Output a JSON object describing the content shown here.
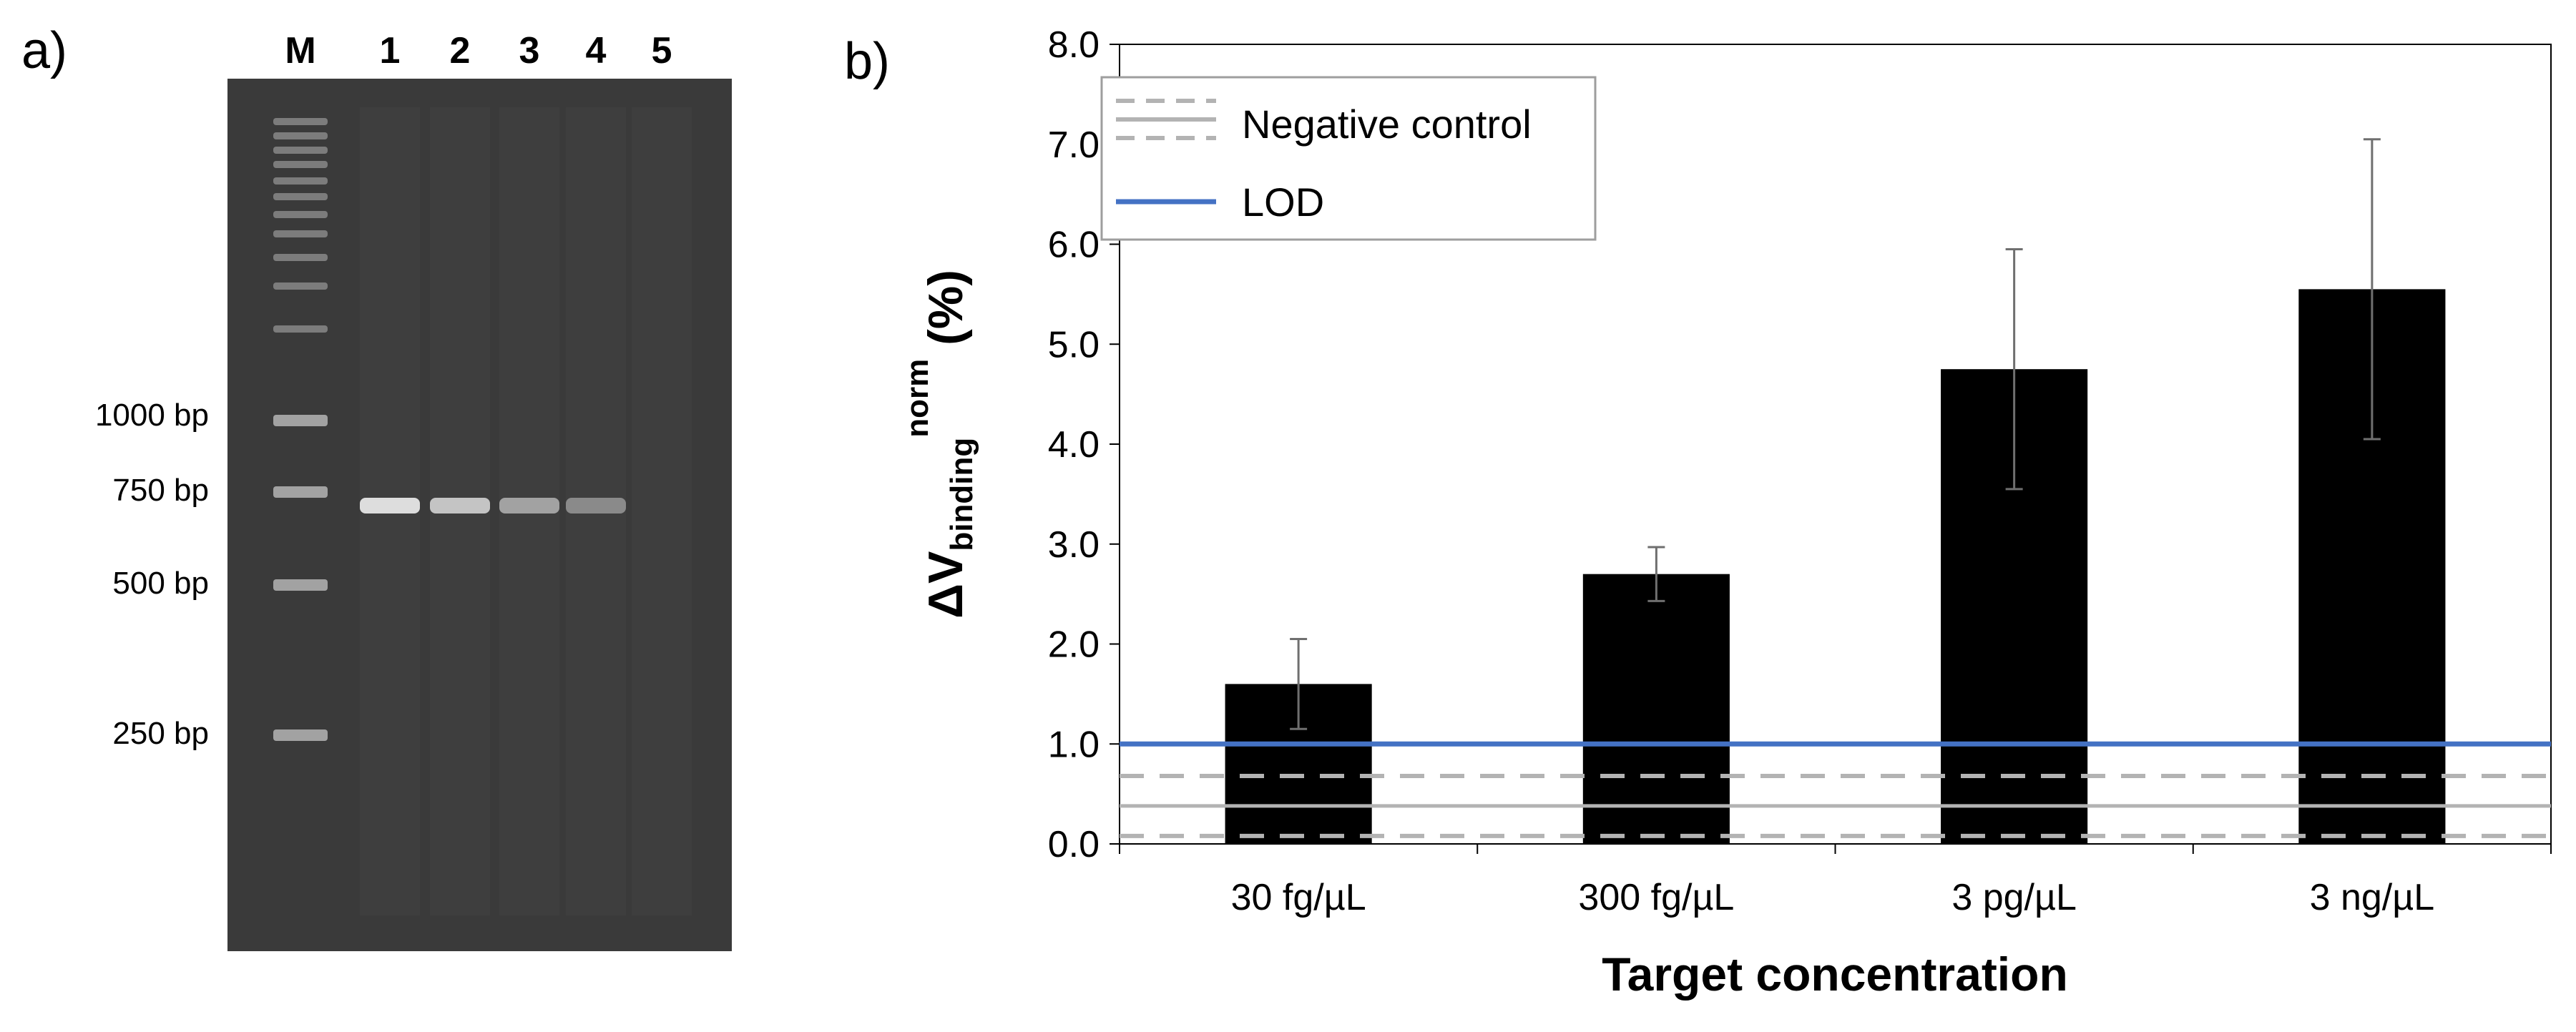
{
  "panel_labels": {
    "a": "a)",
    "b": "b)"
  },
  "gel": {
    "lane_labels": [
      "M",
      "1",
      "2",
      "3",
      "4",
      "5"
    ],
    "ladder_labels": [
      "1000 bp",
      "750 bp",
      "500 bp",
      "250 bp"
    ],
    "colors": {
      "gel": "#3a3a3a",
      "band": "#e6e6e6"
    },
    "band_intensity": [
      0,
      0.95,
      0.8,
      0.6,
      0.45,
      0
    ]
  },
  "chart_data": {
    "type": "bar",
    "categories": [
      "30 fg/µL",
      "300 fg/µL",
      "3 pg/µL",
      "3 ng/µL"
    ],
    "series": [
      {
        "values": [
          1.6,
          2.7,
          4.75,
          5.55
        ],
        "errors": [
          0.45,
          0.27,
          1.2,
          1.5
        ],
        "color": "#000000"
      }
    ],
    "reference_lines": [
      {
        "name": "Negative control",
        "value": 0.38,
        "style": "solid",
        "color": "#b3b3b3"
      },
      {
        "name": "Negative control bounds",
        "values": [
          0.68,
          0.08
        ],
        "style": "dashed",
        "color": "#b3b3b3"
      },
      {
        "name": "LOD",
        "value": 1.0,
        "style": "solid",
        "color": "#4472c4"
      }
    ],
    "ylim": [
      0,
      8
    ],
    "yticks": [
      "0.0",
      "1.0",
      "2.0",
      "3.0",
      "4.0",
      "5.0",
      "6.0",
      "7.0",
      "8.0"
    ],
    "ylabel": {
      "main": "ΔV",
      "sub": "binding",
      "sup": "norm",
      "suffix": " (%)"
    },
    "xlabel": "Target concentration",
    "legend": {
      "position": "top-left",
      "entries": [
        "Negative control",
        "LOD"
      ]
    },
    "grid": false
  }
}
